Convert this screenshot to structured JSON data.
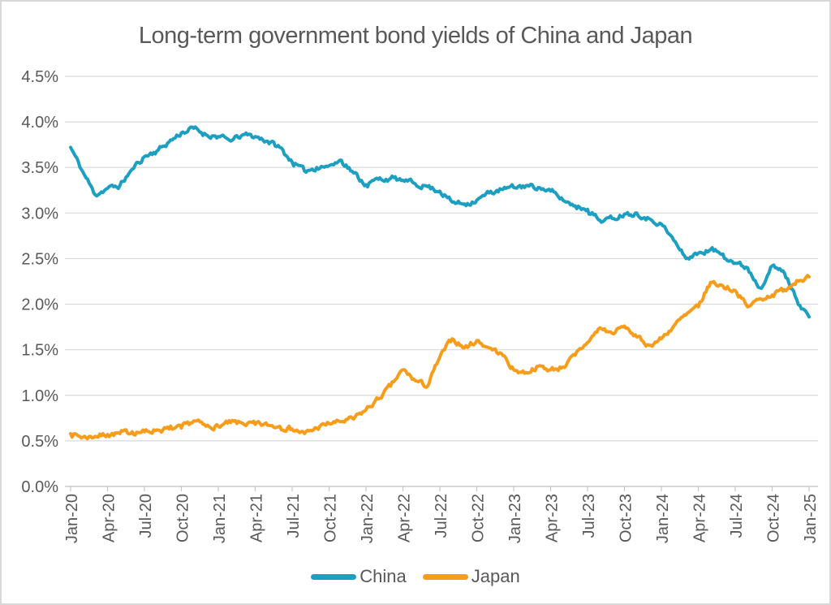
{
  "title": "Long-term government bond yields of China and Japan",
  "legend": [
    {
      "label": "China",
      "color": "#1d9fc2"
    },
    {
      "label": "Japan",
      "color": "#f79d1b"
    }
  ],
  "chart_data": {
    "type": "line",
    "title": "Long-term government bond yields of China and Japan",
    "xlabel": "",
    "ylabel": "",
    "ylim": [
      0,
      4.5
    ],
    "grid": true,
    "legend_position": "bottom",
    "x_label_rotation": -90,
    "x_labels": [
      "Jan-20",
      "Apr-20",
      "Jul-20",
      "Oct-20",
      "Jan-21",
      "Apr-21",
      "Jul-21",
      "Oct-21",
      "Jan-22",
      "Apr-22",
      "Jul-22",
      "Oct-22",
      "Jan-23",
      "Apr-23",
      "Jul-23",
      "Oct-23",
      "Jan-24",
      "Apr-24",
      "Jul-24",
      "Oct-24",
      "Jan-25"
    ],
    "x_label_step_months": 3,
    "y_ticks": [
      0,
      0.5,
      1.0,
      1.5,
      2.0,
      2.5,
      3.0,
      3.5,
      4.0,
      4.5
    ],
    "y_tick_labels": [
      "0.0%",
      "0.5%",
      "1.0%",
      "1.5%",
      "2.0%",
      "2.5%",
      "3.0%",
      "3.5%",
      "4.0%",
      "4.5%"
    ],
    "x_months": "monthly values from Jan-2020 to Jan-2025 inclusive (61 points), units: percent",
    "series": [
      {
        "name": "China",
        "color": "#1d9fc2",
        "values": [
          3.72,
          3.45,
          3.2,
          3.27,
          3.3,
          3.48,
          3.62,
          3.68,
          3.78,
          3.88,
          3.93,
          3.86,
          3.84,
          3.79,
          3.86,
          3.84,
          3.79,
          3.72,
          3.56,
          3.46,
          3.5,
          3.52,
          3.58,
          3.44,
          3.31,
          3.37,
          3.38,
          3.36,
          3.32,
          3.29,
          3.24,
          3.12,
          3.1,
          3.14,
          3.22,
          3.26,
          3.28,
          3.3,
          3.28,
          3.24,
          3.14,
          3.08,
          3.04,
          2.92,
          2.94,
          2.99,
          3.0,
          2.94,
          2.88,
          2.7,
          2.5,
          2.56,
          2.6,
          2.55,
          2.45,
          2.4,
          2.18,
          2.42,
          2.34,
          2.05,
          1.86
        ]
      },
      {
        "name": "Japan",
        "color": "#f79d1b",
        "values": [
          0.58,
          0.54,
          0.55,
          0.57,
          0.58,
          0.6,
          0.6,
          0.62,
          0.63,
          0.64,
          0.72,
          0.66,
          0.66,
          0.7,
          0.69,
          0.68,
          0.67,
          0.66,
          0.63,
          0.58,
          0.64,
          0.69,
          0.71,
          0.74,
          0.84,
          0.96,
          1.1,
          1.28,
          1.16,
          1.1,
          1.42,
          1.62,
          1.52,
          1.6,
          1.52,
          1.46,
          1.28,
          1.25,
          1.32,
          1.28,
          1.31,
          1.44,
          1.58,
          1.74,
          1.68,
          1.76,
          1.64,
          1.55,
          1.62,
          1.76,
          1.88,
          1.97,
          2.24,
          2.2,
          2.15,
          1.97,
          2.06,
          2.1,
          2.16,
          2.26,
          2.3
        ]
      }
    ]
  }
}
